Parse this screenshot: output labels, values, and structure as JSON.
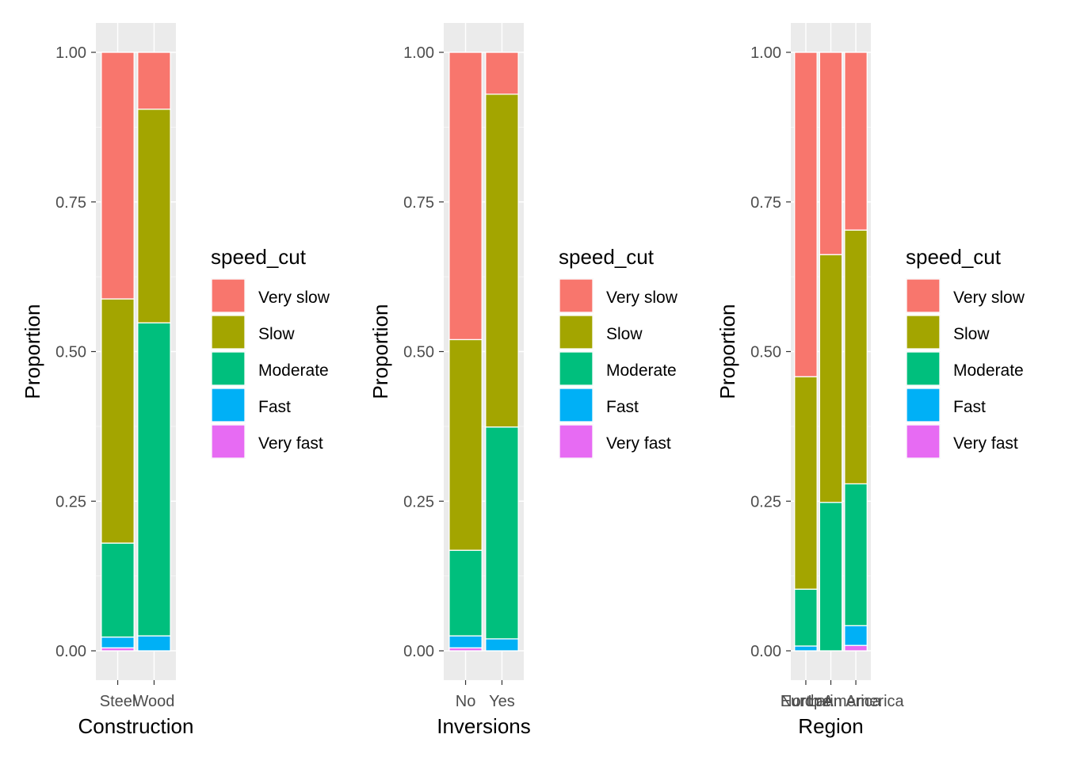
{
  "legend": {
    "title": "speed_cut",
    "entries": [
      {
        "label": "Very slow",
        "color": "#F8766D"
      },
      {
        "label": "Slow",
        "color": "#A3A500"
      },
      {
        "label": "Moderate",
        "color": "#00BF7D"
      },
      {
        "label": "Fast",
        "color": "#00B0F6"
      },
      {
        "label": "Very fast",
        "color": "#E76BF3"
      }
    ]
  },
  "chart_data": [
    {
      "type": "bar",
      "stacked": true,
      "xlabel": "Construction",
      "ylabel": "Proportion",
      "ylim": [
        0,
        1
      ],
      "yticks": [
        "0.00",
        "0.25",
        "0.50",
        "0.75",
        "1.00"
      ],
      "categories": [
        "Steel",
        "Wood"
      ],
      "series": [
        {
          "name": "Very fast",
          "values": [
            0.005,
            0.0
          ]
        },
        {
          "name": "Fast",
          "values": [
            0.018,
            0.025
          ]
        },
        {
          "name": "Moderate",
          "values": [
            0.157,
            0.523
          ]
        },
        {
          "name": "Slow",
          "values": [
            0.408,
            0.357
          ]
        },
        {
          "name": "Very slow",
          "values": [
            0.412,
            0.095
          ]
        }
      ]
    },
    {
      "type": "bar",
      "stacked": true,
      "xlabel": "Inversions",
      "ylabel": "Proportion",
      "ylim": [
        0,
        1
      ],
      "yticks": [
        "0.00",
        "0.25",
        "0.50",
        "0.75",
        "1.00"
      ],
      "categories": [
        "No",
        "Yes"
      ],
      "series": [
        {
          "name": "Very fast",
          "values": [
            0.005,
            0.0
          ]
        },
        {
          "name": "Fast",
          "values": [
            0.02,
            0.02
          ]
        },
        {
          "name": "Moderate",
          "values": [
            0.143,
            0.354
          ]
        },
        {
          "name": "Slow",
          "values": [
            0.352,
            0.556
          ]
        },
        {
          "name": "Very slow",
          "values": [
            0.48,
            0.07
          ]
        }
      ]
    },
    {
      "type": "bar",
      "stacked": true,
      "xlabel": "Region",
      "ylabel": "Proportion",
      "ylim": [
        0,
        1
      ],
      "yticks": [
        "0.00",
        "0.25",
        "0.50",
        "0.75",
        "1.00"
      ],
      "categories": [
        "Europe",
        "North America",
        "Latin America"
      ],
      "series": [
        {
          "name": "Very fast",
          "values": [
            0.0,
            0.0,
            0.009
          ]
        },
        {
          "name": "Fast",
          "values": [
            0.008,
            0.0,
            0.033
          ]
        },
        {
          "name": "Moderate",
          "values": [
            0.095,
            0.248,
            0.237
          ]
        },
        {
          "name": "Slow",
          "values": [
            0.355,
            0.414,
            0.424
          ]
        },
        {
          "name": "Very slow",
          "values": [
            0.542,
            0.338,
            0.297
          ]
        }
      ]
    }
  ]
}
